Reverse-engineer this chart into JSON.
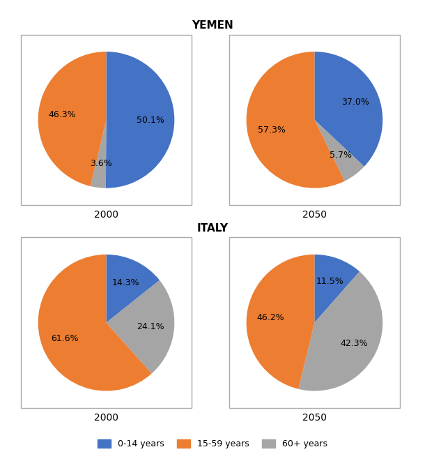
{
  "title_yemen": "YEMEN",
  "title_italy": "ITALY",
  "colors": [
    "#4472C4",
    "#ED7D31",
    "#A5A5A5"
  ],
  "legend_labels": [
    "0-14 years",
    "15-59 years",
    "60+ years"
  ],
  "yemen_2000": [
    50.1,
    46.3,
    3.6
  ],
  "yemen_2050": [
    37.0,
    57.3,
    5.7
  ],
  "italy_2000": [
    14.3,
    61.6,
    24.1
  ],
  "italy_2050": [
    11.5,
    46.2,
    42.3
  ],
  "year_2000": "2000",
  "year_2050": "2050"
}
